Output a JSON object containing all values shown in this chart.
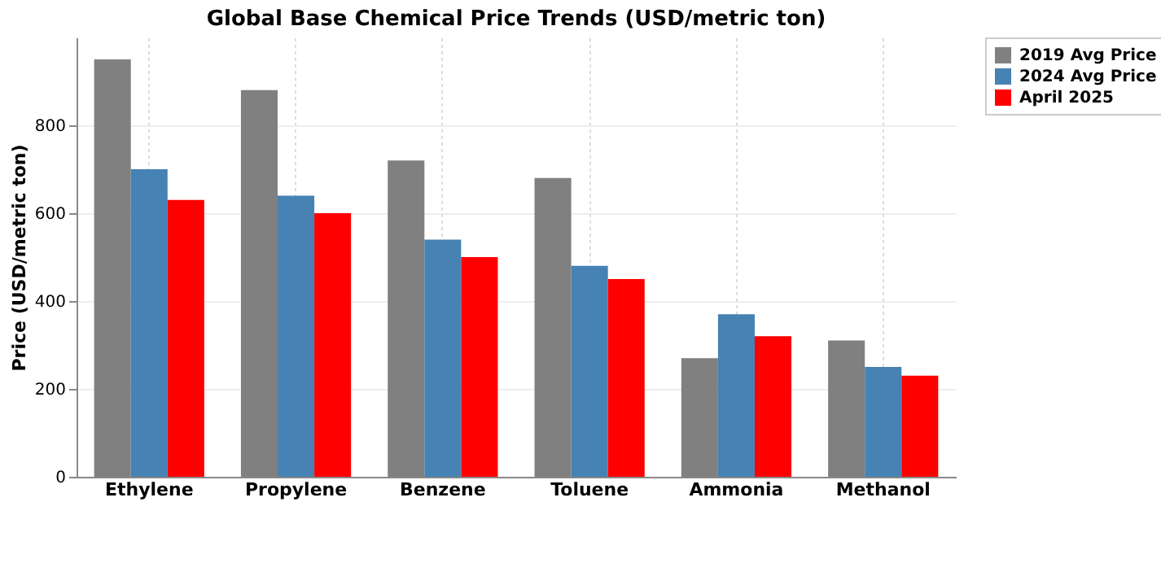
{
  "chart_data": {
    "type": "bar",
    "title": "Global Base Chemical Price Trends (USD/metric ton)",
    "ylabel": "Price (USD/metric ton)",
    "categories": [
      "Ethylene",
      "Propylene",
      "Benzene",
      "Toluene",
      "Ammonia",
      "Methanol"
    ],
    "series": [
      {
        "name": "2019 Avg Price",
        "color": "#808080",
        "values": [
          950,
          880,
          720,
          680,
          270,
          310
        ]
      },
      {
        "name": "2024 Avg Price",
        "color": "#4682b4",
        "values": [
          700,
          640,
          540,
          480,
          370,
          250
        ]
      },
      {
        "name": "April 2025",
        "color": "#ff0000",
        "values": [
          630,
          600,
          500,
          450,
          320,
          230
        ]
      }
    ],
    "ylim": [
      0,
      1000
    ],
    "yticks": [
      0,
      200,
      400,
      600,
      800
    ],
    "grid": true,
    "legend": "right"
  }
}
